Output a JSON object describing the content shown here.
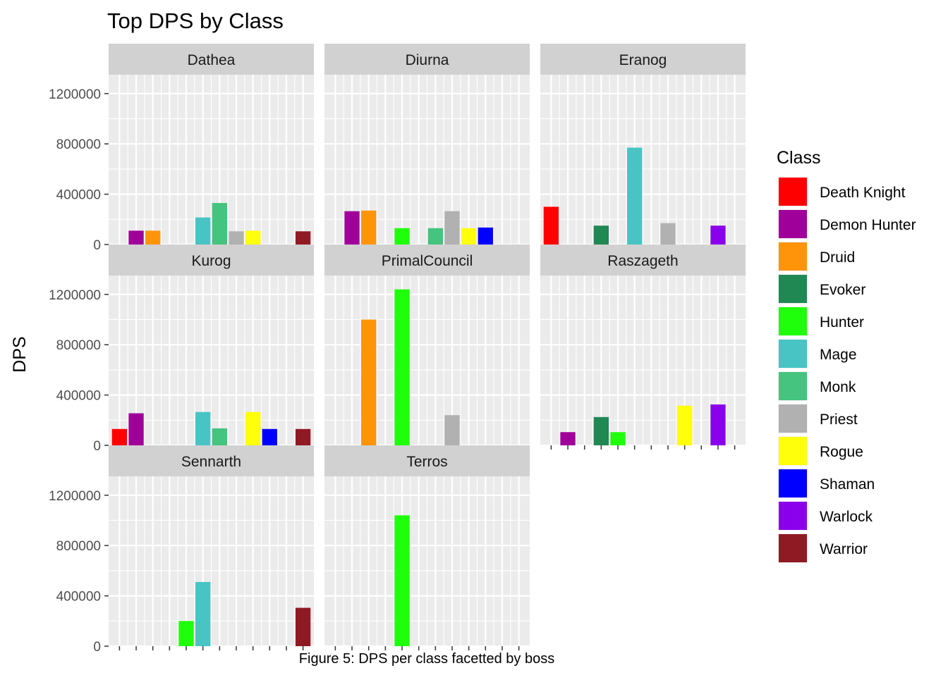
{
  "chart_data": {
    "type": "bar",
    "title": "Top DPS by Class",
    "ylabel": "DPS",
    "xlabel": "",
    "caption": "Figure 5: DPS per class facetted by boss",
    "legend_title": "Class",
    "legend_position": "right",
    "ylim": [
      0,
      1350000
    ],
    "yticks": [
      0,
      400000,
      800000,
      1200000
    ],
    "ytick_labels": [
      "0",
      "400000",
      "800000",
      "1200000"
    ],
    "grid": true,
    "categories": [
      "Death Knight",
      "Demon Hunter",
      "Druid",
      "Evoker",
      "Hunter",
      "Mage",
      "Monk",
      "Priest",
      "Rogue",
      "Shaman",
      "Warlock",
      "Warrior"
    ],
    "colors": [
      "#FF0000",
      "#A0009A",
      "#FF9409",
      "#208853",
      "#1FFF0B",
      "#48C4C4",
      "#44C47E",
      "#B1B1B1",
      "#FFFF0B",
      "#0000FF",
      "#8B00EC",
      "#8F1A23"
    ],
    "series": [
      {
        "name": "Dathea",
        "values": [
          null,
          110000,
          110000,
          null,
          null,
          215000,
          330000,
          105000,
          110000,
          null,
          null,
          105000
        ]
      },
      {
        "name": "Diurna",
        "values": [
          null,
          265000,
          270000,
          null,
          130000,
          null,
          130000,
          265000,
          130000,
          135000,
          null,
          null
        ]
      },
      {
        "name": "Eranog",
        "values": [
          300000,
          null,
          null,
          150000,
          null,
          770000,
          null,
          170000,
          null,
          null,
          150000,
          null
        ]
      },
      {
        "name": "Kurog",
        "values": [
          130000,
          255000,
          null,
          null,
          null,
          265000,
          135000,
          null,
          265000,
          130000,
          null,
          130000
        ]
      },
      {
        "name": "PrimalCouncil",
        "values": [
          null,
          null,
          1000000,
          null,
          1240000,
          null,
          null,
          240000,
          null,
          null,
          null,
          null
        ]
      },
      {
        "name": "Raszageth",
        "values": [
          null,
          105000,
          null,
          225000,
          105000,
          null,
          null,
          null,
          315000,
          null,
          325000,
          null
        ]
      },
      {
        "name": "Sennarth",
        "values": [
          null,
          null,
          null,
          null,
          200000,
          510000,
          null,
          null,
          null,
          null,
          null,
          305000
        ]
      },
      {
        "name": "Terros",
        "values": [
          null,
          null,
          null,
          null,
          1040000,
          null,
          null,
          null,
          null,
          null,
          null,
          null
        ]
      }
    ]
  }
}
